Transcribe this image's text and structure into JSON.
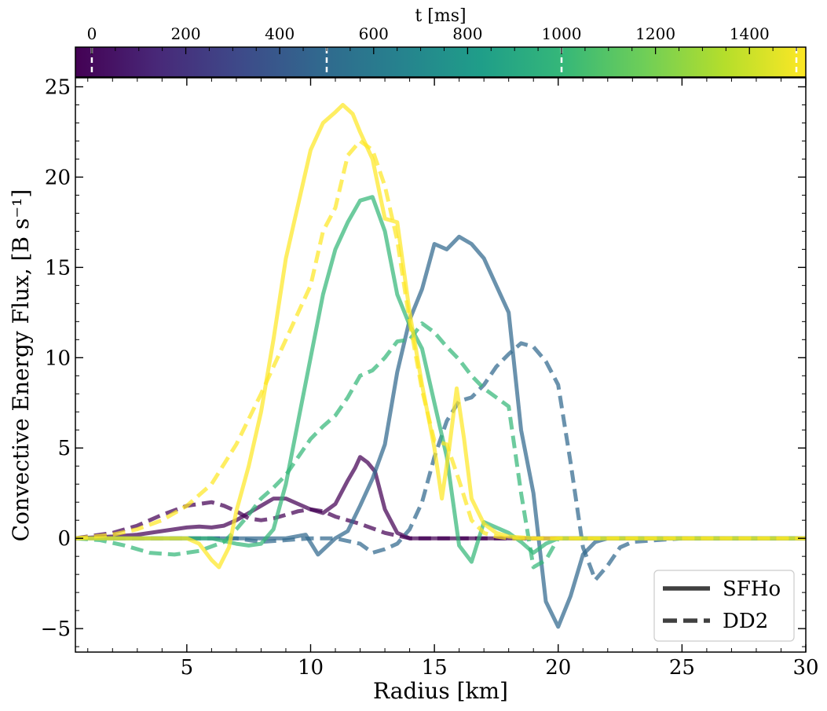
{
  "chart_data": {
    "type": "line",
    "xlabel": "Radius [km]",
    "ylabel": "Convective Energy Flux, [B s⁻¹]",
    "xlim": [
      0.5,
      30
    ],
    "ylim": [
      -6.3,
      25.5
    ],
    "x_ticks": [
      5,
      10,
      15,
      20,
      25,
      30
    ],
    "x_tick_labels": [
      "5",
      "10",
      "15",
      "20",
      "25",
      "30"
    ],
    "y_ticks": [
      -5,
      0,
      5,
      10,
      15,
      20,
      25
    ],
    "y_tick_labels": [
      "−5",
      "0",
      "5",
      "10",
      "15",
      "20",
      "25"
    ],
    "colorbar": {
      "label": "t [ms]",
      "range": [
        -35,
        1520
      ],
      "ticks": [
        0,
        200,
        400,
        600,
        800,
        1000,
        1200,
        1400
      ],
      "tick_labels": [
        "0",
        "200",
        "400",
        "600",
        "800",
        "1000",
        "1200",
        "1400"
      ],
      "marked_times": [
        0,
        500,
        1000,
        1500
      ],
      "colors": [
        "#440154",
        "#482878",
        "#3e4989",
        "#31688e",
        "#26828e",
        "#1f9e89",
        "#35b779",
        "#6ece58",
        "#b5de2b",
        "#fde725"
      ]
    },
    "legend": {
      "placement": "lower-right",
      "entries": [
        {
          "label": "SFHo",
          "style": "solid"
        },
        {
          "label": "DD2",
          "style": "dashed"
        }
      ],
      "color": "#404040"
    },
    "series": [
      {
        "name": "SFHo t=0 ms",
        "eos": "SFHo",
        "time_ms": 0,
        "color": "#440154",
        "x": [
          0.5,
          2,
          3,
          4,
          5,
          5.5,
          6,
          6.5,
          7,
          7.5,
          8,
          8.5,
          9,
          9.5,
          10,
          10.5,
          11,
          11.5,
          11.8,
          12,
          12.3,
          12.6,
          13,
          13.5,
          14,
          15,
          16,
          18,
          20,
          25,
          30
        ],
        "y": [
          0,
          0.1,
          0.2,
          0.4,
          0.6,
          0.65,
          0.6,
          0.7,
          1.0,
          1.4,
          1.8,
          2.2,
          2.2,
          1.9,
          1.6,
          1.4,
          1.9,
          3.2,
          3.9,
          4.5,
          4.2,
          3.7,
          1.6,
          0.3,
          0,
          0,
          0,
          0,
          0,
          0,
          0
        ]
      },
      {
        "name": "DD2 t=0 ms",
        "eos": "DD2",
        "time_ms": 0,
        "color": "#440154",
        "x": [
          0.5,
          2,
          3,
          4,
          5,
          6,
          6.5,
          7,
          7.5,
          8,
          8.5,
          9,
          9.5,
          10,
          10.5,
          11,
          12,
          13,
          14,
          15,
          18,
          20,
          25,
          30
        ],
        "y": [
          0,
          0.3,
          0.7,
          1.3,
          1.8,
          2.0,
          1.8,
          1.5,
          1.1,
          1.0,
          1.1,
          1.3,
          1.5,
          1.6,
          1.5,
          1.2,
          0.8,
          0.3,
          0,
          0,
          0,
          0,
          0,
          0
        ]
      },
      {
        "name": "SFHo t=500 ms",
        "eos": "SFHo",
        "time_ms": 500,
        "color": "#31688e",
        "x": [
          0.5,
          5,
          6,
          7,
          8,
          9,
          9.8,
          10.3,
          11,
          11.5,
          12,
          12.5,
          13,
          13.5,
          14,
          14.5,
          15,
          15.5,
          16,
          16.5,
          17,
          17.5,
          18,
          18.5,
          19,
          19.5,
          20,
          20.5,
          21,
          21.5,
          22,
          25,
          30
        ],
        "y": [
          0,
          0,
          0,
          0,
          0,
          0,
          0.2,
          -0.9,
          0,
          0.4,
          1.8,
          3.3,
          5.2,
          9.2,
          12.1,
          13.8,
          16.3,
          16.0,
          16.7,
          16.3,
          15.5,
          14.0,
          12.5,
          6.0,
          2.5,
          -3.5,
          -4.9,
          -3.2,
          -0.9,
          -0.2,
          0,
          0,
          0
        ]
      },
      {
        "name": "DD2 t=500 ms",
        "eos": "DD2",
        "time_ms": 500,
        "color": "#31688e",
        "x": [
          0.5,
          5,
          6,
          7,
          8,
          9,
          10,
          11,
          12,
          12.5,
          13,
          13.5,
          14,
          14.5,
          15,
          15.5,
          16,
          16.5,
          17,
          17.5,
          18,
          18.5,
          19,
          19.5,
          20,
          20.5,
          21,
          21.5,
          22,
          22.5,
          23,
          25,
          30
        ],
        "y": [
          0,
          0,
          0,
          0,
          -0.2,
          -0.1,
          0,
          0,
          -0.3,
          -0.8,
          -0.6,
          -0.3,
          0.5,
          2.0,
          4.5,
          6.5,
          7.6,
          7.8,
          8.5,
          9.5,
          10.2,
          10.8,
          10.6,
          9.8,
          8.5,
          4.2,
          -0.5,
          -2.3,
          -1.5,
          -0.5,
          -0.2,
          0,
          0
        ]
      },
      {
        "name": "SFHo t=1000 ms",
        "eos": "SFHo",
        "time_ms": 1000,
        "color": "#35b779",
        "x": [
          0.5,
          5,
          6,
          7,
          7.5,
          8,
          8.5,
          9,
          9.5,
          10,
          10.5,
          11,
          11.5,
          12,
          12.5,
          13,
          13.5,
          14,
          14.5,
          15,
          15.5,
          16,
          16.5,
          17,
          17.5,
          18,
          18.5,
          19,
          19.5,
          20,
          21,
          25,
          30
        ],
        "y": [
          0,
          0,
          0,
          -0.3,
          -0.4,
          -0.3,
          0.5,
          3.0,
          6.5,
          10.0,
          13.5,
          16.0,
          17.5,
          18.7,
          18.9,
          17.0,
          13.5,
          11.8,
          10.5,
          7.5,
          4.5,
          -0.4,
          -1.3,
          0.9,
          0.6,
          0.3,
          -0.2,
          -0.8,
          -0.3,
          0,
          0,
          0,
          0
        ]
      },
      {
        "name": "DD2 t=1000 ms",
        "eos": "DD2",
        "time_ms": 1000,
        "color": "#35b779",
        "x": [
          0.5,
          1.5,
          2.5,
          3.5,
          4.5,
          5.5,
          6.5,
          7,
          7.5,
          8,
          8.5,
          9,
          9.5,
          10,
          10.5,
          11,
          11.5,
          12,
          12.5,
          13,
          13.5,
          14,
          14.5,
          15,
          15.5,
          16,
          16.5,
          17,
          17.5,
          18,
          18.5,
          19,
          19.5,
          20,
          25,
          30
        ],
        "y": [
          0,
          -0.1,
          -0.4,
          -0.8,
          -0.9,
          -0.7,
          -0.2,
          0.5,
          1.3,
          2.2,
          2.8,
          3.5,
          4.5,
          5.5,
          6.2,
          6.8,
          7.8,
          9.0,
          9.3,
          10.0,
          10.9,
          11.0,
          11.9,
          11.4,
          10.6,
          9.9,
          9.0,
          8.3,
          7.8,
          7.3,
          2.5,
          -1.6,
          -1.2,
          0,
          0,
          0
        ]
      },
      {
        "name": "SFHo t=1500 ms",
        "eos": "SFHo",
        "time_ms": 1500,
        "color": "#fde725",
        "x": [
          0.5,
          5,
          5.5,
          6,
          6.3,
          6.7,
          7,
          7.5,
          8,
          8.5,
          9,
          9.5,
          10,
          10.5,
          11,
          11.3,
          11.7,
          12,
          12.5,
          13,
          13.5,
          14,
          14.5,
          15,
          15.3,
          15.6,
          15.9,
          16.2,
          16.5,
          17,
          17.5,
          18,
          19,
          20,
          25,
          30
        ],
        "y": [
          0,
          0,
          -0.3,
          -1.2,
          -1.6,
          -0.5,
          1.5,
          4.0,
          7.0,
          11.0,
          15.5,
          18.5,
          21.5,
          23.0,
          23.6,
          24.0,
          23.5,
          22.5,
          21.0,
          17.7,
          17.5,
          12.5,
          8.5,
          5.0,
          2.2,
          5.0,
          8.3,
          5.5,
          2.2,
          0.8,
          0.3,
          0.1,
          0,
          0,
          0,
          0
        ]
      },
      {
        "name": "DD2 t=1500 ms",
        "eos": "DD2",
        "time_ms": 1500,
        "color": "#fde725",
        "x": [
          0.5,
          2,
          3,
          4,
          5,
          6,
          7,
          8,
          9,
          9.5,
          10,
          10.5,
          11,
          11.5,
          12,
          12.5,
          13,
          13.5,
          14,
          14.5,
          15,
          15.5,
          16,
          16.5,
          17,
          17.5,
          18,
          19,
          20,
          25,
          30
        ],
        "y": [
          0,
          0.2,
          0.5,
          1.0,
          1.8,
          3.0,
          5.2,
          8.0,
          11.0,
          12.5,
          14.0,
          17.0,
          18.3,
          21.2,
          22.0,
          21.5,
          19.5,
          16.5,
          12.0,
          8.2,
          5.4,
          5.2,
          3.2,
          1.0,
          0.3,
          0.1,
          0,
          0,
          0,
          0,
          0
        ]
      }
    ]
  }
}
